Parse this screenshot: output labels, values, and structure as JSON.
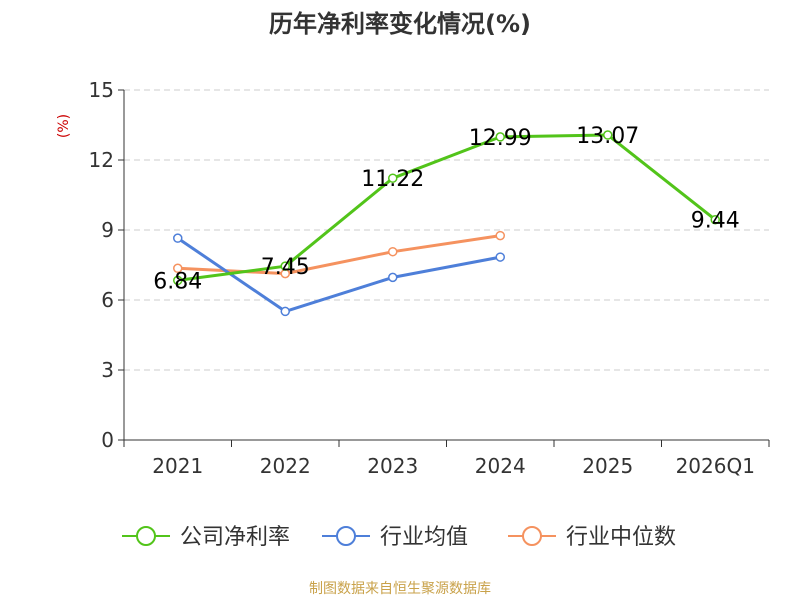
{
  "chart_data": {
    "type": "line",
    "title": "历年净利率变化情况(%)",
    "ylabel": "(%)",
    "xlabel": "",
    "categories": [
      "2021",
      "2022",
      "2023",
      "2024",
      "2025",
      "2026Q1"
    ],
    "ylim": [
      0,
      15
    ],
    "yticks": [
      0,
      3,
      6,
      9,
      12,
      15
    ],
    "grid": true,
    "legend_position": "bottom",
    "series": [
      {
        "name": "公司净利率",
        "color": "#52c41a",
        "values": [
          6.84,
          7.45,
          11.22,
          12.99,
          13.07,
          9.44
        ],
        "show_labels": true
      },
      {
        "name": "行业均值",
        "color": "#4e7fd9",
        "values": [
          8.65,
          5.51,
          6.97,
          7.84,
          null,
          null
        ],
        "show_labels": false
      },
      {
        "name": "行业中位数",
        "color": "#f5925f",
        "values": [
          7.36,
          7.13,
          8.07,
          8.76,
          null,
          null
        ],
        "show_labels": false
      }
    ]
  },
  "footer": {
    "source": "制图数据来自恒生聚源数据库",
    "source_color": "#c9a24a"
  },
  "colors": {
    "axis": "#333333",
    "grid": "#cccccc",
    "ylabel": "#cc0000"
  }
}
